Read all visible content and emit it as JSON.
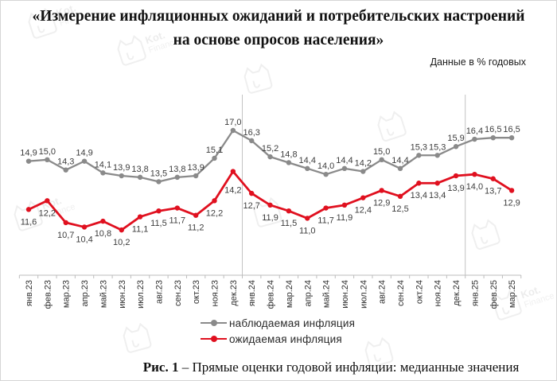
{
  "title": {
    "line1": "«Измерение инфляционных ожиданий и потребительских настроений",
    "line2": "на основе опросов населения»"
  },
  "note": "Данные в % годовых",
  "watermark": {
    "brand": "Kot.",
    "sub": "Finance"
  },
  "chart_data": {
    "type": "line",
    "title": "",
    "categories": [
      "янв.23",
      "фев.23",
      "мар.23",
      "апр.23",
      "май.23",
      "июн.23",
      "июл.23",
      "авг.23",
      "сен.23",
      "окт.23",
      "ноя.23",
      "дек.23",
      "янв.24",
      "фев.24",
      "мар.24",
      "апр.24",
      "май.24",
      "июн.24",
      "июл.24",
      "авг.24",
      "сен.24",
      "окт.24",
      "ноя.24",
      "дек.24",
      "янв.25",
      "фев.25",
      "мар.25"
    ],
    "series": [
      {
        "name": "наблюдаемая инфляция",
        "color": "#8a8a8a",
        "values": [
          14.9,
          15.0,
          14.3,
          14.9,
          14.1,
          13.9,
          13.8,
          13.5,
          13.8,
          13.9,
          15.1,
          17.0,
          16.3,
          15.2,
          14.8,
          14.4,
          14.0,
          14.4,
          14.2,
          15.0,
          14.4,
          15.3,
          15.3,
          15.9,
          16.4,
          16.5,
          16.5
        ]
      },
      {
        "name": "ожидаемая инфляция",
        "color": "#e0101f",
        "values": [
          11.6,
          12.2,
          10.7,
          10.4,
          10.8,
          10.2,
          11.1,
          11.5,
          11.7,
          11.2,
          12.2,
          14.2,
          12.7,
          11.9,
          11.5,
          11.0,
          11.7,
          11.9,
          12.4,
          12.9,
          12.5,
          13.4,
          13.4,
          13.9,
          14.0,
          13.7,
          12.9
        ]
      }
    ],
    "data_labels": true,
    "decimal_separator": ",",
    "legend_position": "bottom",
    "grid": {
      "vertical_lines_after": [
        "дек.23",
        "дек.24"
      ]
    },
    "ylim": [
      7,
      18.5
    ]
  },
  "caption": {
    "prefix": "Рис. 1",
    "text": " – Прямые оценки годовой инфляции: медианные значения"
  }
}
